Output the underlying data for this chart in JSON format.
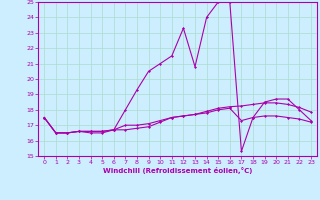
{
  "xlabel": "Windchill (Refroidissement éolien,°C)",
  "background_color": "#cceeff",
  "grid_color": "#aaddcc",
  "line_color": "#aa00aa",
  "xlim": [
    -0.5,
    23.5
  ],
  "ylim": [
    15,
    25
  ],
  "yticks": [
    15,
    16,
    17,
    18,
    19,
    20,
    21,
    22,
    23,
    24,
    25
  ],
  "xticks": [
    0,
    1,
    2,
    3,
    4,
    5,
    6,
    7,
    8,
    9,
    10,
    11,
    12,
    13,
    14,
    15,
    16,
    17,
    18,
    19,
    20,
    21,
    22,
    23
  ],
  "curve1_x": [
    0,
    1,
    2,
    3,
    4,
    5,
    6,
    7,
    8,
    9,
    10,
    11,
    12,
    13,
    14,
    15,
    16,
    17,
    18,
    19,
    20,
    21,
    22,
    23
  ],
  "curve1_y": [
    17.5,
    16.5,
    16.5,
    16.6,
    16.6,
    16.6,
    16.7,
    17.0,
    17.0,
    17.1,
    17.3,
    17.5,
    17.6,
    17.7,
    17.9,
    18.1,
    18.2,
    18.25,
    18.35,
    18.45,
    18.45,
    18.35,
    18.15,
    17.85
  ],
  "curve2_x": [
    0,
    1,
    2,
    3,
    4,
    5,
    6,
    7,
    8,
    9,
    10,
    11,
    12,
    13,
    14,
    15,
    16,
    17,
    18,
    19,
    20,
    21,
    22,
    23
  ],
  "curve2_y": [
    17.5,
    16.5,
    16.5,
    16.6,
    16.6,
    16.6,
    16.7,
    16.7,
    16.8,
    16.9,
    17.2,
    17.5,
    17.6,
    17.7,
    17.8,
    18.0,
    18.1,
    17.3,
    17.5,
    17.6,
    17.6,
    17.5,
    17.4,
    17.2
  ],
  "curve3_x": [
    0,
    1,
    2,
    3,
    4,
    5,
    6,
    7,
    8,
    9,
    10,
    11,
    12,
    13,
    14,
    15,
    16,
    17,
    18,
    19,
    20,
    21,
    22,
    23
  ],
  "curve3_y": [
    17.5,
    16.5,
    16.5,
    16.6,
    16.5,
    16.5,
    16.7,
    18.0,
    19.3,
    20.5,
    21.0,
    21.5,
    23.3,
    20.8,
    24.0,
    25.0,
    25.0,
    15.3,
    17.5,
    18.5,
    18.7,
    18.7,
    18.0,
    17.3
  ]
}
